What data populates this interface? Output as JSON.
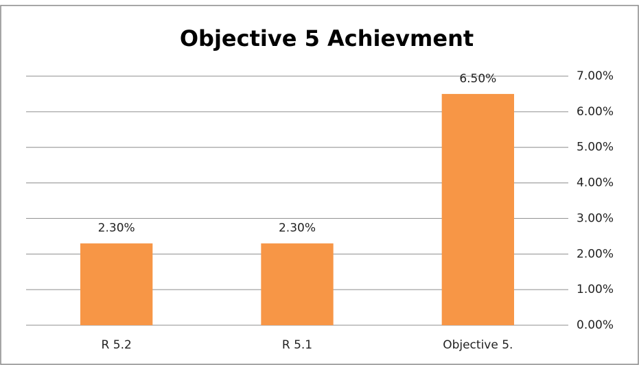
{
  "chart_data": {
    "type": "bar",
    "title": "Objective 5 Achievment",
    "categories": [
      "R 5.2",
      "R 5.1",
      "Objective 5."
    ],
    "values": [
      2.3,
      2.3,
      6.5
    ],
    "value_labels": [
      "2.30%",
      "2.30%",
      "6.50%"
    ],
    "color": "#f79646",
    "ylim": [
      0,
      7
    ],
    "yticks": [
      {
        "value": 0,
        "label": "0.00%"
      },
      {
        "value": 1,
        "label": "1.00%"
      },
      {
        "value": 2,
        "label": "2.00%"
      },
      {
        "value": 3,
        "label": "3.00%"
      },
      {
        "value": 4,
        "label": "4.00%"
      },
      {
        "value": 5,
        "label": "5.00%"
      },
      {
        "value": 6,
        "label": "6.00%"
      },
      {
        "value": 7,
        "label": "7.00%"
      }
    ],
    "y_axis_side": "right",
    "grid": true
  }
}
